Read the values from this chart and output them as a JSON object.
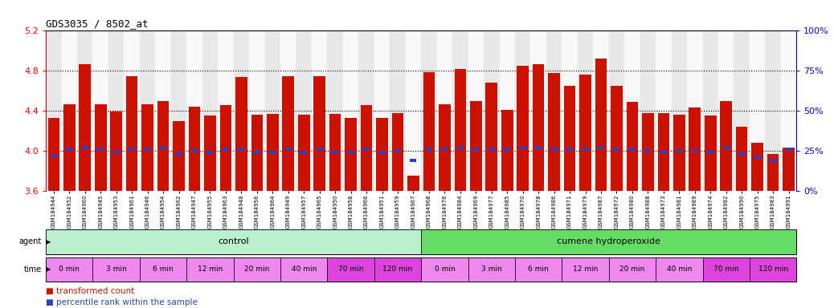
{
  "title": "GDS3035 / 8502_at",
  "ylim": [
    3.6,
    5.2
  ],
  "yticks": [
    3.6,
    4.0,
    4.4,
    4.8,
    5.2
  ],
  "right_ytick_vals": [
    0,
    25,
    50,
    75,
    100
  ],
  "bar_color": "#cc1100",
  "blue_color": "#2244cc",
  "sample_labels": [
    "GSM184944",
    "GSM184952",
    "GSM184960",
    "GSM184945",
    "GSM184953",
    "GSM184961",
    "GSM184946",
    "GSM184954",
    "GSM184962",
    "GSM184947",
    "GSM184955",
    "GSM184963",
    "GSM184948",
    "GSM184956",
    "GSM184964",
    "GSM184949",
    "GSM184957",
    "GSM184965",
    "GSM184950",
    "GSM184958",
    "GSM184966",
    "GSM184951",
    "GSM184959",
    "GSM184967",
    "GSM184968",
    "GSM184976",
    "GSM184984",
    "GSM184969",
    "GSM184977",
    "GSM184985",
    "GSM184970",
    "GSM184978",
    "GSM184986",
    "GSM184971",
    "GSM184979",
    "GSM184987",
    "GSM184972",
    "GSM184980",
    "GSM184988",
    "GSM184973",
    "GSM184981",
    "GSM184989",
    "GSM184974",
    "GSM184982",
    "GSM184990",
    "GSM184975",
    "GSM184983",
    "GSM184991"
  ],
  "bar_heights": [
    4.33,
    4.47,
    4.87,
    4.47,
    4.39,
    4.75,
    4.47,
    4.5,
    4.3,
    4.44,
    4.35,
    4.46,
    4.74,
    4.36,
    4.37,
    4.75,
    4.36,
    4.75,
    4.37,
    4.33,
    4.46,
    4.33,
    4.38,
    3.75,
    4.79,
    4.47,
    4.82,
    4.5,
    4.68,
    4.41,
    4.85,
    4.87,
    4.78,
    4.65,
    4.76,
    4.92,
    4.65,
    4.49,
    4.38,
    4.38,
    4.36,
    4.43,
    4.35,
    4.5,
    4.24,
    4.08,
    3.97,
    4.03
  ],
  "blue_pct": [
    22,
    26,
    27,
    26,
    24,
    26,
    26,
    27,
    23,
    25,
    24,
    26,
    26,
    24,
    24,
    26,
    24,
    26,
    24,
    24,
    26,
    24,
    25,
    19,
    26,
    26,
    27,
    26,
    26,
    26,
    27,
    27,
    26,
    26,
    26,
    27,
    26,
    26,
    25,
    24,
    25,
    25,
    24,
    27,
    23,
    21,
    19,
    26
  ],
  "agent_groups": [
    {
      "label": "control",
      "start": 0,
      "end": 24,
      "color": "#bbeecc"
    },
    {
      "label": "cumene hydroperoxide",
      "start": 24,
      "end": 48,
      "color": "#66dd66"
    }
  ],
  "time_groups": [
    {
      "label": "0 min",
      "start": 0,
      "end": 3,
      "color": "#ee88ee"
    },
    {
      "label": "3 min",
      "start": 3,
      "end": 6,
      "color": "#ee88ee"
    },
    {
      "label": "6 min",
      "start": 6,
      "end": 9,
      "color": "#ee88ee"
    },
    {
      "label": "12 min",
      "start": 9,
      "end": 12,
      "color": "#ee88ee"
    },
    {
      "label": "20 min",
      "start": 12,
      "end": 15,
      "color": "#ee88ee"
    },
    {
      "label": "40 min",
      "start": 15,
      "end": 18,
      "color": "#ee88ee"
    },
    {
      "label": "70 min",
      "start": 18,
      "end": 21,
      "color": "#dd44dd"
    },
    {
      "label": "120 min",
      "start": 21,
      "end": 24,
      "color": "#dd44dd"
    },
    {
      "label": "0 min",
      "start": 24,
      "end": 27,
      "color": "#ee88ee"
    },
    {
      "label": "3 min",
      "start": 27,
      "end": 30,
      "color": "#ee88ee"
    },
    {
      "label": "6 min",
      "start": 30,
      "end": 33,
      "color": "#ee88ee"
    },
    {
      "label": "12 min",
      "start": 33,
      "end": 36,
      "color": "#ee88ee"
    },
    {
      "label": "20 min",
      "start": 36,
      "end": 39,
      "color": "#ee88ee"
    },
    {
      "label": "40 min",
      "start": 39,
      "end": 42,
      "color": "#ee88ee"
    },
    {
      "label": "70 min",
      "start": 42,
      "end": 45,
      "color": "#dd44dd"
    },
    {
      "label": "120 min",
      "start": 45,
      "end": 48,
      "color": "#dd44dd"
    }
  ],
  "legend_items": [
    {
      "label": "transformed count",
      "color": "#cc1100"
    },
    {
      "label": "percentile rank within the sample",
      "color": "#2244cc"
    }
  ],
  "bg_colors": [
    "#e8e8e8",
    "#f8f8f8"
  ]
}
